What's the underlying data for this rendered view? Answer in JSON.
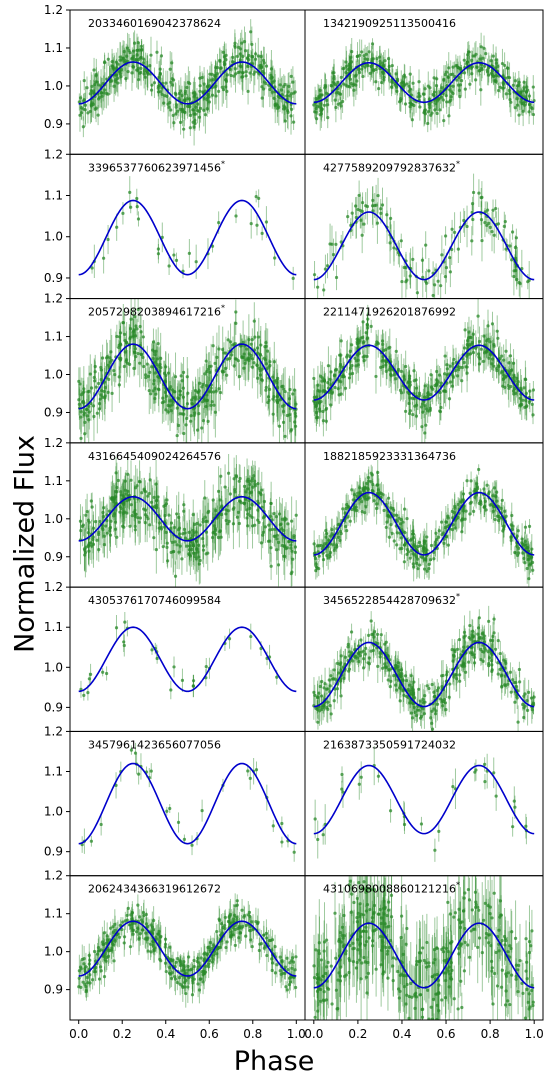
{
  "figure": {
    "xlabel": "Phase",
    "ylabel": "Normalized Flux"
  },
  "colors": {
    "data": "#2a8a2a",
    "model": "#0000cc"
  },
  "chart_data": [
    {
      "type": "scatter",
      "title": "2033460169042378624",
      "xlim": [
        -0.04,
        1.04
      ],
      "ylim": [
        0.82,
        1.2
      ],
      "yticks": [
        0.9,
        1.0,
        1.1,
        1.2
      ],
      "xticks": [],
      "model": {
        "mean": 1.008,
        "amp": 0.055
      },
      "data_density": "dense",
      "scatter_std": 0.03
    },
    {
      "type": "scatter",
      "title": "1342190925113500416",
      "xlim": [
        -0.04,
        1.04
      ],
      "ylim": [
        0.82,
        1.2
      ],
      "yticks": [],
      "xticks": [],
      "model": {
        "mean": 1.009,
        "amp": 0.052
      },
      "data_density": "dense",
      "scatter_std": 0.025
    },
    {
      "type": "scatter",
      "title": "3396537760623971456",
      "title_mark": "*",
      "xlim": [
        -0.04,
        1.04
      ],
      "ylim": [
        0.85,
        1.2
      ],
      "yticks": [
        0.9,
        1.0,
        1.1,
        1.2
      ],
      "xticks": [],
      "model": {
        "mean": 0.998,
        "amp": 0.09
      },
      "data_density": "sparse",
      "scatter_std": 0.025
    },
    {
      "type": "scatter",
      "title": "4277589209792837632",
      "title_mark": "*",
      "xlim": [
        -0.04,
        1.04
      ],
      "ylim": [
        0.85,
        1.2
      ],
      "yticks": [],
      "xticks": [],
      "model": {
        "mean": 0.978,
        "amp": 0.082
      },
      "data_density": "medium",
      "scatter_std": 0.03
    },
    {
      "type": "scatter",
      "title": "2057298203894617216",
      "title_mark": "*",
      "xlim": [
        -0.04,
        1.04
      ],
      "ylim": [
        0.82,
        1.2
      ],
      "yticks": [
        0.9,
        1.0,
        1.1,
        1.2
      ],
      "xticks": [],
      "model": {
        "mean": 0.995,
        "amp": 0.085
      },
      "data_density": "dense",
      "scatter_std": 0.04
    },
    {
      "type": "scatter",
      "title": "2211471926201876992",
      "xlim": [
        -0.04,
        1.04
      ],
      "ylim": [
        0.82,
        1.2
      ],
      "yticks": [],
      "xticks": [],
      "model": {
        "mean": 1.005,
        "amp": 0.072
      },
      "data_density": "dense",
      "scatter_std": 0.03
    },
    {
      "type": "scatter",
      "title": "4316645409024264576",
      "xlim": [
        -0.04,
        1.04
      ],
      "ylim": [
        0.82,
        1.2
      ],
      "yticks": [
        0.9,
        1.0,
        1.1,
        1.2
      ],
      "xticks": [],
      "model": {
        "mean": 1.0,
        "amp": 0.058
      },
      "data_density": "dense",
      "scatter_std": 0.04
    },
    {
      "type": "scatter",
      "title": "1882185923331364736",
      "xlim": [
        -0.04,
        1.04
      ],
      "ylim": [
        0.82,
        1.2
      ],
      "yticks": [],
      "xticks": [],
      "model": {
        "mean": 0.987,
        "amp": 0.082
      },
      "data_density": "dense",
      "scatter_std": 0.025
    },
    {
      "type": "scatter",
      "title": "4305376170746099584",
      "xlim": [
        -0.04,
        1.04
      ],
      "ylim": [
        0.84,
        1.2
      ],
      "yticks": [
        0.9,
        1.0,
        1.1,
        1.2
      ],
      "xticks": [],
      "model": {
        "mean": 1.02,
        "amp": 0.08
      },
      "data_density": "sparse",
      "scatter_std": 0.02
    },
    {
      "type": "scatter",
      "title": "3456522854428709632",
      "title_mark": "*",
      "xlim": [
        -0.04,
        1.04
      ],
      "ylim": [
        0.84,
        1.2
      ],
      "yticks": [],
      "xticks": [],
      "model": {
        "mean": 0.982,
        "amp": 0.08
      },
      "data_density": "dense",
      "scatter_std": 0.025
    },
    {
      "type": "scatter",
      "title": "3457961423656077056",
      "xlim": [
        -0.04,
        1.04
      ],
      "ylim": [
        0.84,
        1.2
      ],
      "yticks": [
        0.9,
        1.0,
        1.1,
        1.2
      ],
      "xticks": [],
      "model": {
        "mean": 1.02,
        "amp": 0.1
      },
      "data_density": "sparse",
      "scatter_std": 0.02
    },
    {
      "type": "scatter",
      "title": "2163873350591724032",
      "xlim": [
        -0.04,
        1.04
      ],
      "ylim": [
        0.84,
        1.2
      ],
      "yticks": [],
      "xticks": [],
      "model": {
        "mean": 1.03,
        "amp": 0.085
      },
      "data_density": "sparse",
      "scatter_std": 0.03
    },
    {
      "type": "scatter",
      "title": "2062434366319612672",
      "xlim": [
        -0.04,
        1.04
      ],
      "ylim": [
        0.82,
        1.2
      ],
      "yticks": [
        0.9,
        1.0,
        1.1,
        1.2
      ],
      "xticks": [
        "0.0",
        "0.2",
        "0.4",
        "0.6",
        "0.8",
        "1.0"
      ],
      "model": {
        "mean": 1.008,
        "amp": 0.072
      },
      "data_density": "dense",
      "scatter_std": 0.025
    },
    {
      "type": "scatter",
      "title": "4310698008860121216",
      "title_mark": "*",
      "xlim": [
        -0.04,
        1.04
      ],
      "ylim": [
        0.82,
        1.2
      ],
      "yticks": [],
      "xticks": [
        "0.0",
        "0.2",
        "0.4",
        "0.6",
        "0.8",
        "1.0"
      ],
      "model": {
        "mean": 0.99,
        "amp": 0.085
      },
      "data_density": "dense",
      "scatter_std": 0.07
    }
  ]
}
